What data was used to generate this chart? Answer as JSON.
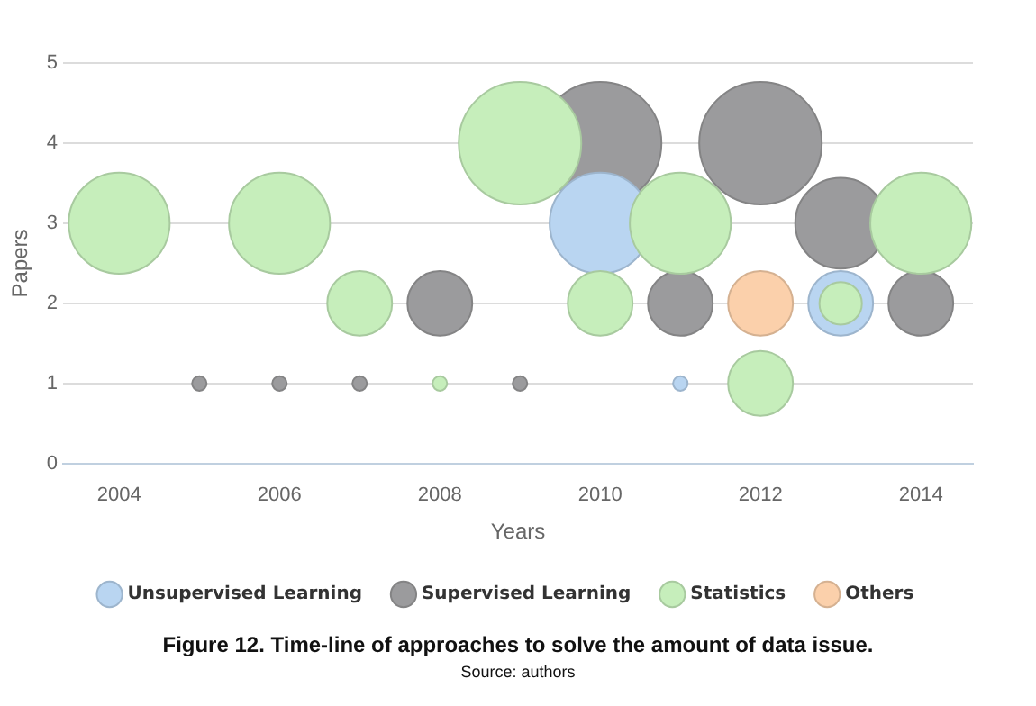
{
  "chart_data": {
    "type": "bubble",
    "title": "Figure 12. Time-line of approaches to solve the amount of data issue.",
    "xlabel": "Years",
    "ylabel": "Papers",
    "annotations": [
      "Source: authors"
    ],
    "xlim": [
      2003.3,
      2014.65
    ],
    "xticks": [
      2004,
      2006,
      2008,
      2010,
      2012,
      2014
    ],
    "ylim": [
      0,
      5
    ],
    "yticks": [
      0,
      1,
      2,
      3,
      4,
      5
    ],
    "grid": "y",
    "legend": "bottom",
    "marker": "circle",
    "series": [
      {
        "name": "Unsupervised Learning",
        "color": "#b9d5f1",
        "x": [
          2010,
          2011,
          2013
        ],
        "values": [
          3,
          1,
          2
        ],
        "sizes": [
          0.68,
          0.014,
          0.28
        ]
      },
      {
        "name": "Supervised Learning",
        "color": "#9b9b9d",
        "x": [
          2005,
          2006,
          2007,
          2008,
          2009,
          2010,
          2011,
          2012,
          2013,
          2014
        ],
        "values": [
          1,
          1,
          1,
          2,
          1,
          4,
          2,
          4,
          3,
          2
        ],
        "sizes": [
          0.014,
          0.014,
          0.014,
          0.28,
          0.014,
          1,
          0.28,
          1,
          0.55,
          0.28
        ]
      },
      {
        "name": "Statistics",
        "color": "#c6eebb",
        "x": [
          2004,
          2006,
          2007,
          2008,
          2009,
          2010,
          2011,
          2012,
          2013,
          2014
        ],
        "values": [
          3,
          3,
          2,
          1,
          4,
          2,
          3,
          1,
          2,
          3
        ],
        "sizes": [
          0.68,
          0.68,
          0.28,
          0.014,
          1,
          0.28,
          0.68,
          0.28,
          0.12,
          0.68
        ]
      },
      {
        "name": "Others",
        "color": "#fbd0ab",
        "x": [
          2012
        ],
        "values": [
          2
        ],
        "sizes": [
          0.28
        ]
      }
    ]
  }
}
